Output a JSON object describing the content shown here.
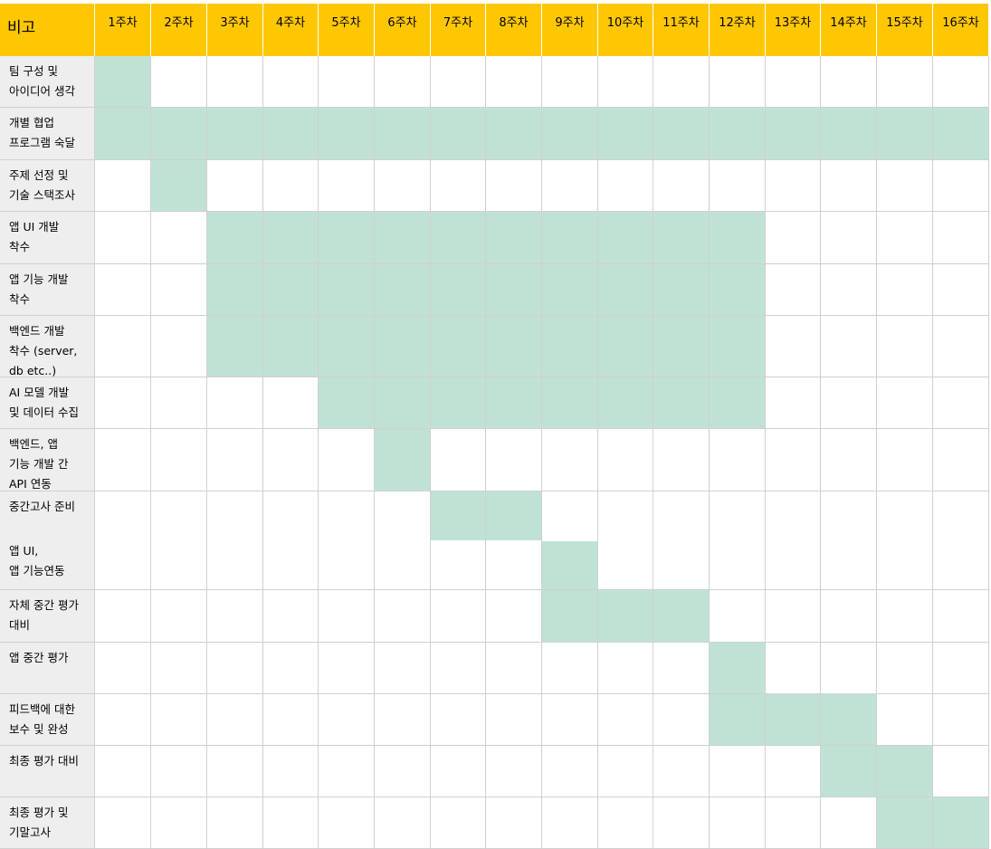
{
  "table": {
    "corner_label": "비고",
    "weeks": [
      "1주차",
      "2주차",
      "3주차",
      "4주차",
      "5주차",
      "6주차",
      "7주차",
      "8주차",
      "9주차",
      "10주차",
      "11주차",
      "12주차",
      "13주차",
      "14주차",
      "15주차",
      "16주차"
    ],
    "fill_color": "#c0e2d4",
    "header_color": "#ffc702",
    "label_bg_color": "#eeeeee",
    "rows": [
      {
        "label": "팀 구성 및\n아이디어 생각",
        "start_week": 1,
        "end_week": 1
      },
      {
        "label": "개별 협업\n프로그램 숙달",
        "start_week": 1,
        "end_week": 16
      },
      {
        "label": " 주제 선정 및\n기술 스택조사",
        "start_week": 2,
        "end_week": 2
      },
      {
        "label": "앱 UI 개발\n착수",
        "start_week": 3,
        "end_week": 12
      },
      {
        "label": "앱 기능 개발\n착수",
        "start_week": 3,
        "end_week": 12
      },
      {
        "label": "백엔드 개발\n착수 (server,\ndb etc..)",
        "start_week": 3,
        "end_week": 12
      },
      {
        "label": "AI 모델 개발\n및 데이터 수집",
        "start_week": 5,
        "end_week": 12
      },
      {
        "label": "백엔드, 앱\n기능 개발 간\nAPI 연동",
        "start_week": 6,
        "end_week": 6
      },
      {
        "label": "중간고사 준비",
        "start_week": 7,
        "end_week": 8,
        "sub_label": "앱 UI,\n앱 기능연동",
        "sub_start_week": 9,
        "sub_end_week": 9
      },
      {
        "label": "자체 중간 평가\n대비",
        "start_week": 9,
        "end_week": 11
      },
      {
        "label": "앱 중간 평가",
        "start_week": 12,
        "end_week": 12
      },
      {
        "label": "피드백에 대한\n보수 및 완성",
        "start_week": 12,
        "end_week": 14
      },
      {
        "label": "최종 평가 대비",
        "start_week": 14,
        "end_week": 15
      },
      {
        "label": "최종 평가 및\n기말고사",
        "start_week": 15,
        "end_week": 16
      }
    ]
  }
}
